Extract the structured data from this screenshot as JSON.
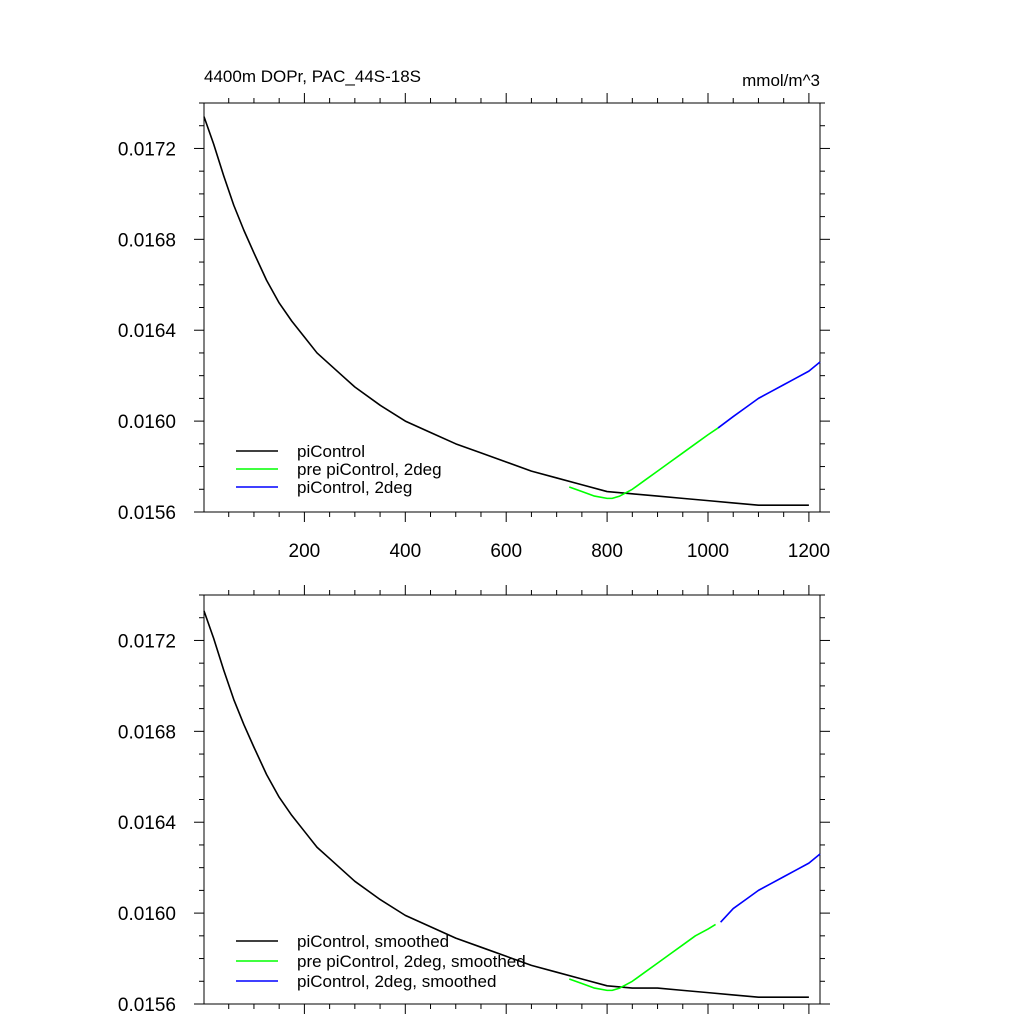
{
  "title_left": "4400m DOPr, PAC_44S-18S",
  "title_right": "mmol/m^3",
  "chart_data": [
    {
      "type": "line",
      "xlim": [
        1,
        1222
      ],
      "ylim": [
        0.0156,
        0.0174
      ],
      "x_ticks": [
        200,
        400,
        600,
        800,
        1000,
        1200
      ],
      "y_ticks": [
        0.0156,
        0.016,
        0.0164,
        0.0168,
        0.0172
      ],
      "y_tick_labels": [
        "0.0156",
        "0.0160",
        "0.0164",
        "0.0168",
        "0.0172"
      ],
      "show_x_tick_labels": true,
      "legend_position": "bottom-left",
      "series": [
        {
          "name": "piControl",
          "color": "#000000",
          "x": [
            1,
            20,
            40,
            60,
            80,
            100,
            125,
            150,
            175,
            200,
            225,
            250,
            275,
            300,
            350,
            400,
            450,
            500,
            550,
            600,
            650,
            700,
            750,
            800,
            850,
            900,
            950,
            1000,
            1050,
            1100,
            1150,
            1200
          ],
          "y": [
            0.01734,
            0.01722,
            0.01708,
            0.01695,
            0.01684,
            0.01674,
            0.01662,
            0.01652,
            0.01644,
            0.01637,
            0.0163,
            0.01625,
            0.0162,
            0.01615,
            0.01607,
            0.016,
            0.01595,
            0.0159,
            0.01586,
            0.01582,
            0.01578,
            0.01575,
            0.01572,
            0.01569,
            0.01568,
            0.01567,
            0.01566,
            0.01565,
            0.01564,
            0.01563,
            0.01563,
            0.01563
          ]
        },
        {
          "name": "pre piControl, 2deg",
          "color": "#00ff00",
          "x": [
            725,
            750,
            775,
            800,
            810,
            825,
            850,
            875,
            900,
            925,
            950,
            975,
            1000,
            1020
          ],
          "y": [
            0.01571,
            0.01569,
            0.01567,
            0.01566,
            0.01566,
            0.01567,
            0.0157,
            0.01574,
            0.01578,
            0.01582,
            0.01586,
            0.0159,
            0.01594,
            0.01597
          ]
        },
        {
          "name": "piControl, 2deg",
          "color": "#0000ff",
          "x": [
            1020,
            1050,
            1075,
            1100,
            1125,
            1150,
            1175,
            1200,
            1222
          ],
          "y": [
            0.01597,
            0.01602,
            0.01606,
            0.0161,
            0.01613,
            0.01616,
            0.01619,
            0.01622,
            0.01626
          ]
        }
      ]
    },
    {
      "type": "line",
      "xlim": [
        1,
        1222
      ],
      "ylim": [
        0.0156,
        0.0174
      ],
      "x_ticks": [
        200,
        400,
        600,
        800,
        1000,
        1200
      ],
      "y_ticks": [
        0.0156,
        0.016,
        0.0164,
        0.0168,
        0.0172
      ],
      "y_tick_labels": [
        "0.0156",
        "0.0160",
        "0.0164",
        "0.0168",
        "0.0172"
      ],
      "show_x_tick_labels": false,
      "legend_position": "bottom-left",
      "series": [
        {
          "name": "piControl, smoothed",
          "color": "#000000",
          "x": [
            1,
            20,
            40,
            60,
            80,
            100,
            125,
            150,
            175,
            200,
            225,
            250,
            275,
            300,
            350,
            400,
            450,
            500,
            550,
            600,
            650,
            700,
            750,
            800,
            850,
            900,
            950,
            1000,
            1050,
            1100,
            1150,
            1200
          ],
          "y": [
            0.01733,
            0.01721,
            0.01707,
            0.01694,
            0.01683,
            0.01673,
            0.01661,
            0.01651,
            0.01643,
            0.01636,
            0.01629,
            0.01624,
            0.01619,
            0.01614,
            0.01606,
            0.01599,
            0.01594,
            0.01589,
            0.01585,
            0.01581,
            0.01577,
            0.01574,
            0.01571,
            0.01568,
            0.01567,
            0.01567,
            0.01566,
            0.01565,
            0.01564,
            0.01563,
            0.01563,
            0.01563
          ]
        },
        {
          "name": "pre piControl, 2deg, smoothed",
          "color": "#00ff00",
          "x": [
            725,
            750,
            775,
            800,
            810,
            825,
            850,
            875,
            900,
            925,
            950,
            975,
            1000,
            1015
          ],
          "y": [
            0.01571,
            0.01569,
            0.01567,
            0.01566,
            0.01566,
            0.01567,
            0.0157,
            0.01574,
            0.01578,
            0.01582,
            0.01586,
            0.0159,
            0.01593,
            0.01595
          ]
        },
        {
          "name": "piControl, 2deg, smoothed",
          "color": "#0000ff",
          "x": [
            1025,
            1050,
            1075,
            1100,
            1125,
            1150,
            1175,
            1200,
            1222
          ],
          "y": [
            0.01596,
            0.01602,
            0.01606,
            0.0161,
            0.01613,
            0.01616,
            0.01619,
            0.01622,
            0.01626
          ]
        }
      ]
    }
  ]
}
